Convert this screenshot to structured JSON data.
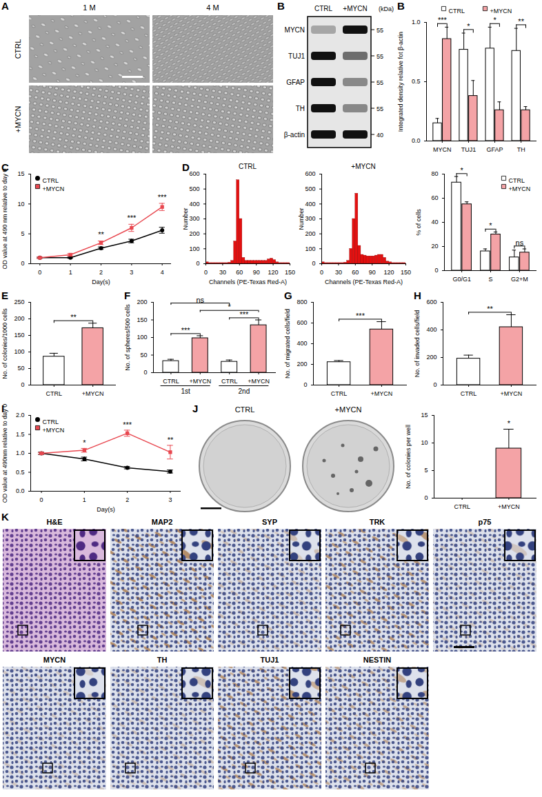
{
  "chart_data": [
    {
      "panel_label": "B",
      "type": "bar",
      "categories": [
        "MYCN",
        "TUJ1",
        "GFAP",
        "TH"
      ],
      "ylabel": "Integrated density relative fot β-actin",
      "ylim": [
        0,
        1
      ],
      "yticks": [
        {
          "value": 0,
          "label": "0.0"
        },
        {
          "value": 0.5,
          "label": "0.5"
        },
        {
          "value": 1,
          "label": "1.0"
        }
      ],
      "legend": "top",
      "series": [
        {
          "name": "CTRL",
          "color": "#ffffff",
          "values": [
            0.15,
            0.77,
            0.78,
            0.76
          ],
          "errors": [
            0.04,
            0.14,
            0.18,
            0.19
          ]
        },
        {
          "name": "+MYCN",
          "color": "#f4a3a6",
          "values": [
            0.86,
            0.38,
            0.26,
            0.26
          ],
          "errors": [
            0.1,
            0.13,
            0.07,
            0.03
          ]
        }
      ],
      "annotations": [
        {
          "text": "***",
          "category": "MYCN"
        },
        {
          "text": "*",
          "category": "TUJ1"
        },
        {
          "text": "*",
          "category": "GFAP"
        },
        {
          "text": "**",
          "category": "TH"
        }
      ]
    },
    {
      "panel_label": "C",
      "type": "line",
      "x": [
        0,
        1,
        2,
        3,
        4
      ],
      "xlabel": "Day(s)",
      "ylabel": "OD value at 490 nm relative to day 0",
      "xlim": [
        -0.3,
        4.3
      ],
      "xticks": [
        0,
        1,
        2,
        3,
        4
      ],
      "ylim": [
        0,
        15
      ],
      "yticks": [
        0,
        5,
        10,
        15
      ],
      "legend": "top-left",
      "series": [
        {
          "name": "CTRL",
          "color": "#000000",
          "marker": "circle",
          "values": [
            1,
            1.0,
            2.6,
            3.8,
            5.6
          ],
          "errors": [
            0.1,
            0.1,
            0.2,
            0.3,
            0.5
          ]
        },
        {
          "name": "+MYCN",
          "color": "#e8474f",
          "marker": "square",
          "values": [
            1,
            1.5,
            3.5,
            6.0,
            9.5
          ],
          "errors": [
            0.1,
            0.2,
            0.3,
            0.6,
            0.6
          ]
        }
      ],
      "annotations": [
        {
          "text": "**",
          "x": 2
        },
        {
          "text": "***",
          "x": 3
        },
        {
          "text": "***",
          "x": 4
        }
      ]
    },
    {
      "panel_label": "D",
      "type": "histogram",
      "title": "CTRL",
      "xlabel": "Channels (PE-Texas Red-A)",
      "ylabel": "Number",
      "bins": [
        0,
        5,
        10,
        15,
        20,
        25,
        30,
        35,
        40,
        45,
        50,
        55,
        60,
        65,
        70,
        75,
        80,
        85,
        90,
        95,
        100,
        105,
        110,
        115,
        120,
        125,
        130,
        135,
        140,
        145,
        150
      ],
      "counts": [
        10,
        5,
        5,
        5,
        5,
        5,
        5,
        5,
        8,
        20,
        150,
        560,
        300,
        40,
        20,
        20,
        20,
        20,
        20,
        20,
        20,
        20,
        30,
        35,
        25,
        10,
        5,
        5,
        5,
        5
      ],
      "color": "#e41010",
      "xlim": [
        0,
        150
      ],
      "xticks": [
        0,
        30,
        60,
        90,
        120,
        150
      ],
      "ylim": [
        0,
        600
      ],
      "yticks": [
        0,
        100,
        200,
        300,
        400,
        500,
        600
      ]
    },
    {
      "type": "histogram",
      "title": "+MYCN",
      "xlabel": "Channels (PE-Texas Red-A)",
      "ylabel": "Number",
      "bins": [
        0,
        5,
        10,
        15,
        20,
        25,
        30,
        35,
        40,
        45,
        50,
        55,
        60,
        65,
        70,
        75,
        80,
        85,
        90,
        95,
        100,
        105,
        110,
        115,
        120,
        125,
        130,
        135,
        140,
        145,
        150
      ],
      "counts": [
        10,
        5,
        5,
        5,
        5,
        5,
        5,
        5,
        8,
        20,
        100,
        300,
        470,
        120,
        60,
        55,
        50,
        50,
        50,
        55,
        60,
        60,
        40,
        15,
        10,
        5,
        5,
        5,
        5,
        5
      ],
      "color": "#e41010",
      "xlim": [
        0,
        150
      ],
      "xticks": [
        0,
        30,
        60,
        90,
        120,
        150
      ],
      "ylim": [
        0,
        600
      ],
      "yticks": [
        0,
        100,
        200,
        300,
        400,
        500,
        600
      ]
    },
    {
      "type": "bar",
      "categories": [
        "G0/G1",
        "S",
        "G2+M"
      ],
      "ylabel": "% of cells",
      "ylim": [
        0,
        80
      ],
      "yticks": [
        0,
        20,
        40,
        60,
        80
      ],
      "legend": "top-right",
      "series": [
        {
          "name": "CTRL",
          "color": "#ffffff",
          "values": [
            73,
            16,
            11
          ],
          "errors": [
            5,
            2,
            6
          ]
        },
        {
          "name": "+MYCN",
          "color": "#f4a3a6",
          "values": [
            55,
            30,
            15
          ],
          "errors": [
            2,
            2,
            3
          ]
        }
      ],
      "annotations": [
        {
          "text": "*",
          "category": "G0/G1"
        },
        {
          "text": "*",
          "category": "S"
        },
        {
          "text": "ns",
          "category": "G2+M"
        }
      ]
    },
    {
      "panel_label": "E",
      "type": "bar",
      "categories": [
        "CTRL",
        "+MYCN"
      ],
      "ylabel": "No. of colonies/1000 cells",
      "ylim": [
        0,
        250
      ],
      "yticks": [
        0,
        50,
        100,
        150,
        200,
        250
      ],
      "values": [
        86,
        172
      ],
      "errors": [
        10,
        15
      ],
      "colors": [
        "#ffffff",
        "#f4a3a6"
      ],
      "annotations": [
        {
          "text": "**",
          "between": [
            0,
            1
          ]
        }
      ]
    },
    {
      "panel_label": "F",
      "type": "bar",
      "categories": [
        "CTRL",
        "+MYCN",
        "CTRL",
        "+MYCN"
      ],
      "ylabel": "No. of spheres/500 cells",
      "ylim": [
        0,
        200
      ],
      "yticks": [
        0,
        50,
        100,
        150,
        200
      ],
      "values": [
        33,
        98,
        31,
        135
      ],
      "errors": [
        5,
        7,
        5,
        15
      ],
      "colors": [
        "#ffffff",
        "#f4a3a6",
        "#ffffff",
        "#f4a3a6"
      ],
      "groups": [
        {
          "label": "1st",
          "between": [
            0,
            1
          ]
        },
        {
          "label": "2nd",
          "between": [
            2,
            3
          ]
        }
      ],
      "annotations": [
        {
          "text": "***",
          "between": [
            0,
            1
          ]
        },
        {
          "text": "***",
          "between": [
            2,
            3
          ]
        },
        {
          "text": "*",
          "between": [
            1,
            3
          ]
        },
        {
          "text": "ns",
          "between": [
            0,
            2
          ]
        }
      ]
    },
    {
      "panel_label": "G",
      "type": "bar",
      "categories": [
        "CTRL",
        "+MYCN"
      ],
      "ylabel": "No. of migrated cells/field",
      "ylim": [
        0,
        800
      ],
      "yticks": [
        0,
        200,
        400,
        600,
        800
      ],
      "values": [
        222,
        538
      ],
      "errors": [
        15,
        75
      ],
      "colors": [
        "#ffffff",
        "#f4a3a6"
      ],
      "annotations": [
        {
          "text": "***",
          "between": [
            0,
            1
          ]
        }
      ]
    },
    {
      "panel_label": "H",
      "type": "bar",
      "categories": [
        "CTRL",
        "+MYCN"
      ],
      "ylabel": "No. of invaded cells/field",
      "ylim": [
        0,
        600
      ],
      "yticks": [
        0,
        200,
        400,
        600
      ],
      "values": [
        192,
        420
      ],
      "errors": [
        25,
        90
      ],
      "colors": [
        "#ffffff",
        "#f4a3a6"
      ],
      "annotations": [
        {
          "text": "**",
          "between": [
            0,
            1
          ]
        }
      ]
    },
    {
      "panel_label": "I",
      "type": "line",
      "x": [
        0,
        1,
        2,
        3
      ],
      "xlabel": "Day(s)",
      "ylabel": "OD value at 490nm relative to day 0",
      "xlim": [
        -0.25,
        3.25
      ],
      "xticks": [
        0,
        1,
        2,
        3
      ],
      "ylim": [
        0,
        2
      ],
      "yticks": [
        {
          "value": 0,
          "label": "0.0"
        },
        {
          "value": 0.5,
          "label": "0.5"
        },
        {
          "value": 1,
          "label": "1.0"
        },
        {
          "value": 1.5,
          "label": "1.5"
        },
        {
          "value": 2,
          "label": "2.0"
        }
      ],
      "legend": "top-left",
      "series": [
        {
          "name": "CTRL",
          "color": "#000000",
          "marker": "circle",
          "values": [
            1.0,
            0.85,
            0.62,
            0.52
          ],
          "errors": [
            0.03,
            0.05,
            0.03,
            0.04
          ]
        },
        {
          "name": "+MYCN",
          "color": "#e8474f",
          "marker": "square",
          "values": [
            1.0,
            1.08,
            1.53,
            1.03
          ],
          "errors": [
            0.02,
            0.05,
            0.08,
            0.18
          ]
        }
      ],
      "annotations": [
        {
          "text": "*",
          "x": 1
        },
        {
          "text": "***",
          "x": 2
        },
        {
          "text": "**",
          "x": 3
        }
      ]
    },
    {
      "type": "bar",
      "categories": [
        "CTRL",
        "+MYCN"
      ],
      "ylabel": "No. of colonies per well",
      "ylim": [
        0,
        15
      ],
      "yticks": [
        0,
        5,
        10,
        15
      ],
      "values": [
        0,
        9
      ],
      "errors": [
        0,
        3.5
      ],
      "colors": [
        "#ffffff",
        "#f4a3a6"
      ],
      "annotations": [
        {
          "text": "*",
          "category": "+MYCN"
        }
      ]
    }
  ],
  "images": [
    {
      "panel_label": "A",
      "type": "micrographs",
      "columns": [
        "1 M",
        "4 M"
      ],
      "rows": [
        "CTRL",
        "+MYCN"
      ]
    },
    {
      "type": "western_blot",
      "lanes": [
        "CTRL",
        "+MYCN"
      ],
      "rows": [
        "MYCN",
        "TUJ1",
        "GFAP",
        "TH",
        "β-actin"
      ],
      "markers": [
        55,
        55,
        55,
        55,
        40
      ],
      "unit": "(kDa)"
    },
    {
      "panel_label": "J",
      "type": "culture_dishes",
      "labels": [
        "CTRL",
        "+MYCN"
      ]
    },
    {
      "panel_label": "K",
      "type": "ihc_panel",
      "stains": [
        "H&E",
        "MAP2",
        "SYP",
        "TRK",
        "p75",
        "MYCN",
        "TH",
        "TUJ1",
        "NESTIN"
      ]
    }
  ]
}
